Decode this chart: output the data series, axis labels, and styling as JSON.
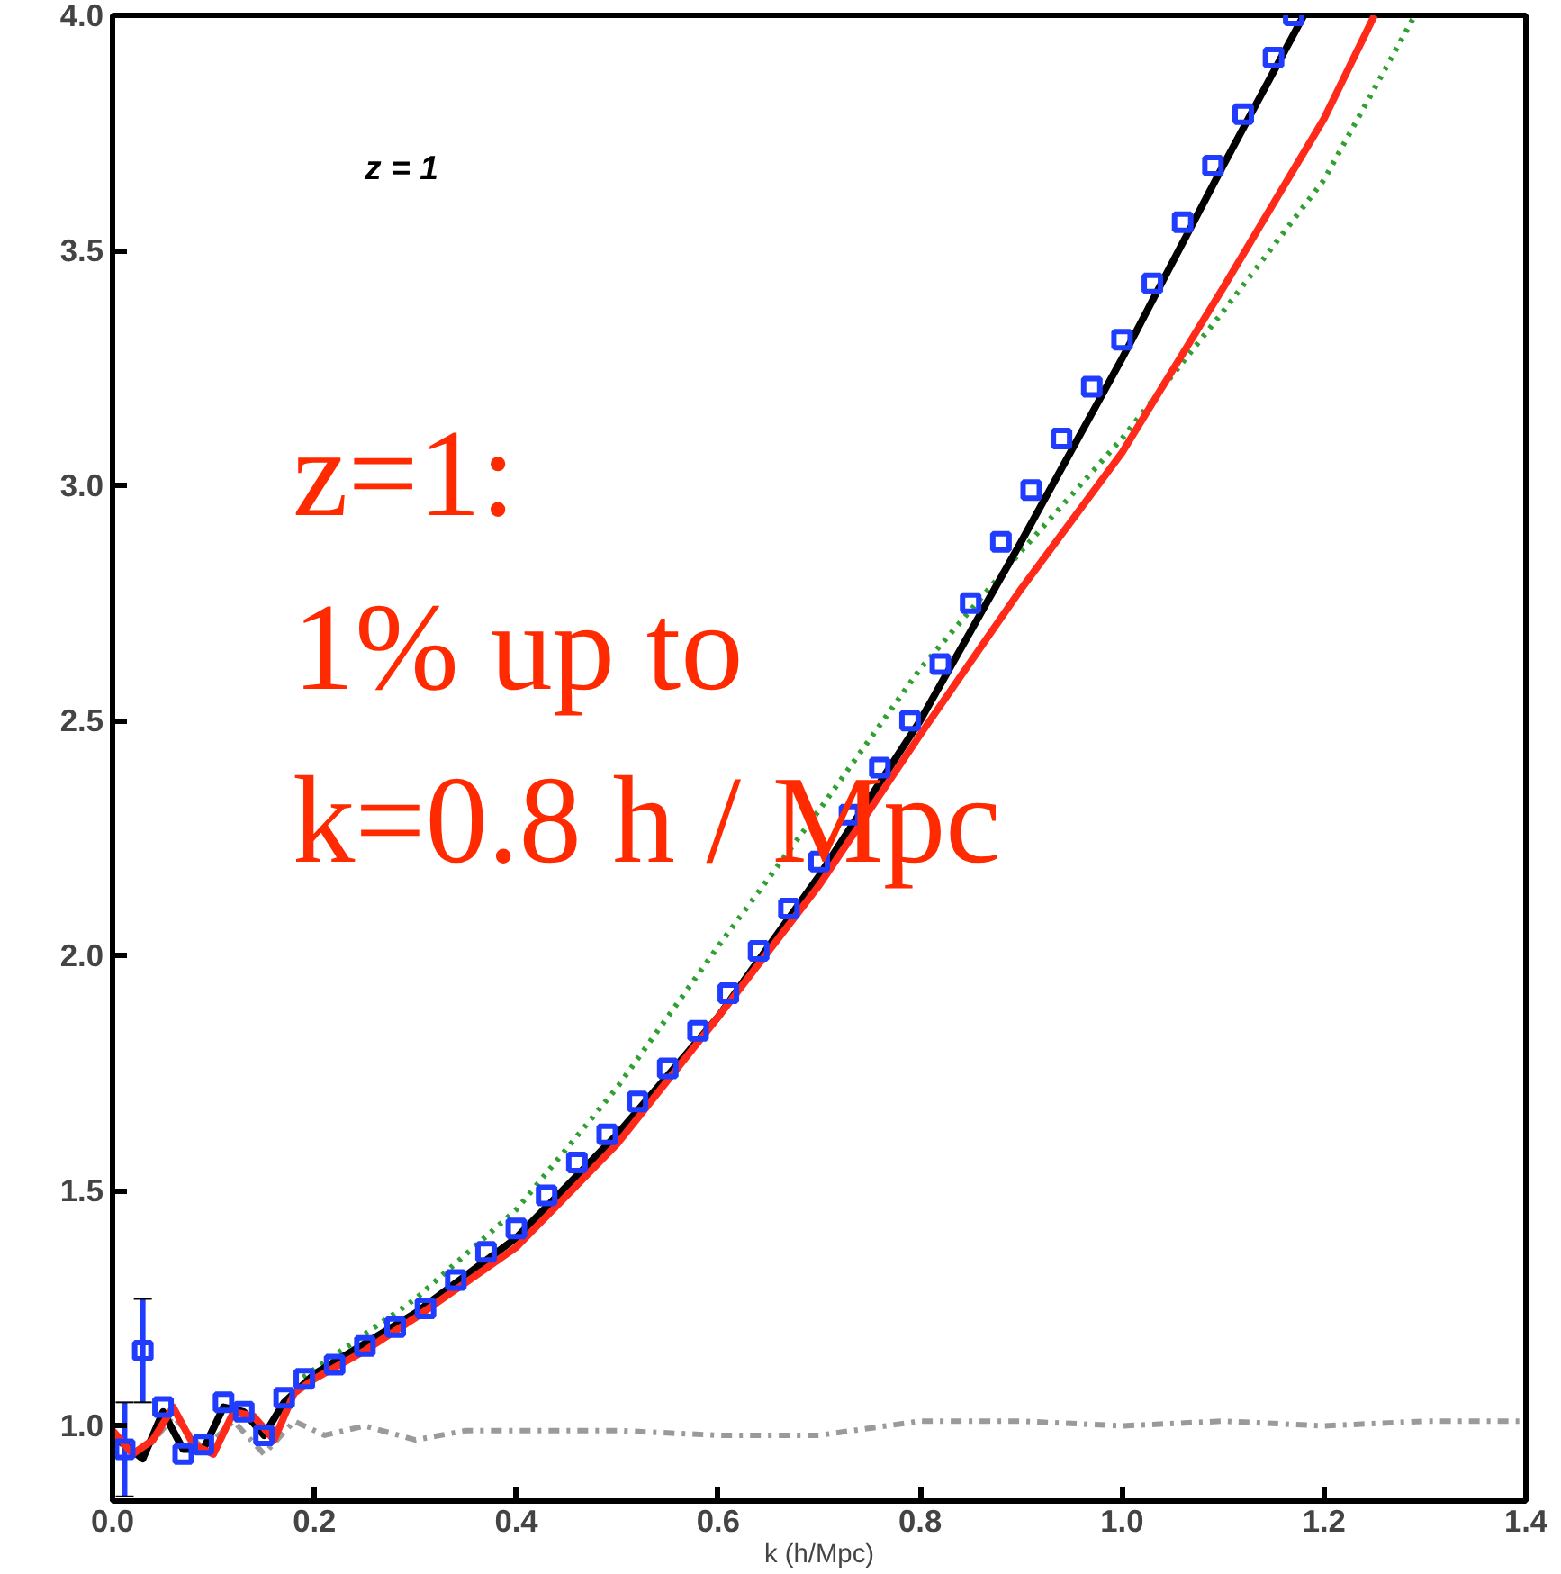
{
  "chart_data": {
    "type": "line",
    "xlabel": "k (h/Mpc)",
    "xlim": [
      0.0,
      1.4
    ],
    "ylim": [
      0.84,
      4.0
    ],
    "xticks": [
      {
        "value": 0.0,
        "label": "0.0"
      },
      {
        "value": 0.2,
        "label": "0.2"
      },
      {
        "value": 0.4,
        "label": "0.4"
      },
      {
        "value": 0.6,
        "label": "0.6"
      },
      {
        "value": 0.8,
        "label": "0.8"
      },
      {
        "value": 1.0,
        "label": "1.0"
      },
      {
        "value": 1.2,
        "label": "1.2"
      },
      {
        "value": 1.4,
        "label": "1.4"
      }
    ],
    "yticks": [
      {
        "value": 1.0,
        "label": "1.0"
      },
      1.5,
      {
        "value": 2.0,
        "label": "2.0"
      },
      2.5,
      {
        "value": 3.0,
        "label": "3.0"
      },
      3.5,
      {
        "value": 4.0,
        "label": "4.0"
      }
    ],
    "grid": false,
    "annotations": [
      "z = 1",
      "z=1:\n1% up to\nk=0.8 h / Mpc"
    ],
    "series": [
      {
        "color": "#9a9a9a",
        "line_style": "dashed",
        "marker": "none",
        "x": [
          0.0,
          0.03,
          0.06,
          0.09,
          0.12,
          0.15,
          0.18,
          0.21,
          0.25,
          0.3,
          0.35,
          0.4,
          0.5,
          0.6,
          0.7,
          0.8,
          0.9,
          1.0,
          1.1,
          1.2,
          1.3,
          1.4
        ],
        "values": [
          0.97,
          0.94,
          1.02,
          0.95,
          1.01,
          0.94,
          1.01,
          0.98,
          1.0,
          0.97,
          0.99,
          0.99,
          0.99,
          0.98,
          0.98,
          1.01,
          1.01,
          1.0,
          1.01,
          1.0,
          1.01,
          1.01
        ]
      },
      {
        "color": "#30a030",
        "line_style": "dotted",
        "marker": "none",
        "x": [
          0.18,
          0.2,
          0.3,
          0.4,
          0.5,
          0.6,
          0.7,
          0.8,
          0.9,
          1.0,
          1.1,
          1.2,
          1.29
        ],
        "values": [
          1.09,
          1.12,
          1.27,
          1.46,
          1.72,
          2.02,
          2.31,
          2.61,
          2.86,
          3.1,
          3.37,
          3.65,
          4.0
        ]
      },
      {
        "color": "#000000",
        "line_style": "solid",
        "marker": "none",
        "x": [
          0.0,
          0.03,
          0.05,
          0.07,
          0.09,
          0.11,
          0.13,
          0.15,
          0.17,
          0.2,
          0.3,
          0.4,
          0.5,
          0.6,
          0.7,
          0.8,
          0.9,
          1.0,
          1.1,
          1.18
        ],
        "values": [
          0.98,
          0.93,
          1.03,
          0.95,
          0.95,
          1.04,
          1.03,
          0.98,
          1.05,
          1.11,
          1.24,
          1.4,
          1.62,
          1.87,
          2.17,
          2.5,
          2.88,
          3.27,
          3.68,
          4.0
        ]
      },
      {
        "type": "scatter",
        "color": "#1f3cff",
        "marker": "square",
        "x": [
          0.012,
          0.03,
          0.05,
          0.07,
          0.09,
          0.11,
          0.13,
          0.15,
          0.17,
          0.19,
          0.22,
          0.25,
          0.28,
          0.31,
          0.34,
          0.37,
          0.4,
          0.43,
          0.46,
          0.49,
          0.52,
          0.55,
          0.58,
          0.61,
          0.64,
          0.67,
          0.7,
          0.73,
          0.76,
          0.79,
          0.82,
          0.85,
          0.88,
          0.91,
          0.94,
          0.97,
          1.0,
          1.03,
          1.06,
          1.09,
          1.12,
          1.15,
          1.17
        ],
        "values": [
          0.95,
          1.16,
          1.04,
          0.94,
          0.96,
          1.05,
          1.03,
          0.98,
          1.06,
          1.1,
          1.13,
          1.17,
          1.21,
          1.25,
          1.31,
          1.37,
          1.42,
          1.49,
          1.56,
          1.62,
          1.69,
          1.76,
          1.84,
          1.92,
          2.01,
          2.1,
          2.2,
          2.3,
          2.4,
          2.5,
          2.62,
          2.75,
          2.88,
          2.99,
          3.1,
          3.21,
          3.31,
          3.43,
          3.56,
          3.68,
          3.79,
          3.91,
          4.0
        ],
        "errors": [
          0.1,
          0.11,
          null,
          null,
          null,
          null,
          null,
          null,
          null,
          null,
          null,
          null,
          null,
          null,
          null,
          null,
          null,
          null,
          null,
          null,
          null,
          null,
          null,
          null,
          null,
          null,
          null,
          null,
          null,
          null,
          null,
          null,
          null,
          null,
          null,
          null,
          null,
          null,
          null,
          null,
          null,
          null,
          null
        ]
      },
      {
        "color": "#ff2a1a",
        "line_style": "solid",
        "marker": "none",
        "x": [
          0.0,
          0.02,
          0.04,
          0.06,
          0.08,
          0.1,
          0.12,
          0.14,
          0.16,
          0.18,
          0.2,
          0.25,
          0.3,
          0.4,
          0.5,
          0.6,
          0.7,
          0.8,
          0.9,
          1.0,
          1.1,
          1.2,
          1.25
        ],
        "values": [
          0.99,
          0.94,
          0.97,
          1.04,
          0.96,
          0.94,
          1.03,
          1.02,
          0.97,
          1.07,
          1.1,
          1.16,
          1.23,
          1.38,
          1.6,
          1.87,
          2.15,
          2.47,
          2.78,
          3.07,
          3.42,
          3.78,
          4.0
        ]
      }
    ]
  }
}
